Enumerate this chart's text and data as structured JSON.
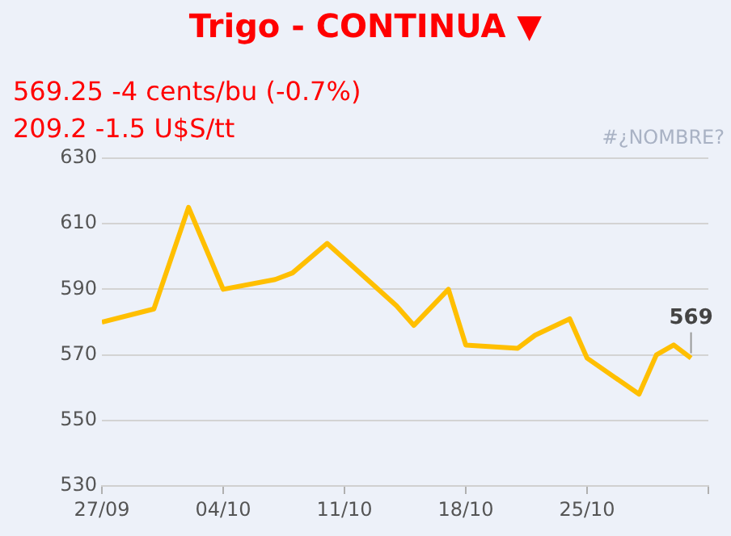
{
  "chart_data": {
    "type": "line",
    "title": "Trigo - CONTINUA ▼",
    "subtitle": "569.25 -4 cents/bu (-0.7%)",
    "annotations": [
      "209.2 -1.5 U$S/tt",
      "#¿NOMBRE?",
      {
        "text": "569",
        "x": "--10-31",
        "y": 569
      }
    ],
    "x": [
      "--09-27",
      "--09-30",
      "--10-02",
      "--10-04",
      "--10-07",
      "--10-08",
      "--10-10",
      "--10-14",
      "--10-15",
      "--10-17",
      "--10-18",
      "--10-21",
      "--10-22",
      "--10-24",
      "--10-25",
      "--10-28",
      "--10-29",
      "--10-30",
      "--10-31"
    ],
    "series": [
      {
        "color": "#ffbf00",
        "values": [
          580,
          584,
          615,
          590,
          593,
          595,
          604,
          585,
          579,
          590,
          573,
          572,
          576,
          581,
          569,
          558,
          570,
          573,
          569
        ]
      }
    ],
    "xlim": [
      "--09-27",
      "--11-01"
    ],
    "xticks": [
      {
        "value": "--09-27",
        "label": "27/09"
      },
      {
        "value": "--10-04",
        "label": "04/10"
      },
      {
        "value": "--10-11",
        "label": "11/10"
      },
      {
        "value": "--10-18",
        "label": "18/10"
      },
      {
        "value": "--10-25",
        "label": "25/10"
      },
      {
        "value": "--11-01",
        "label": null
      }
    ],
    "ylim": [
      530,
      630
    ],
    "yticks": [
      530,
      550,
      570,
      590,
      610,
      630
    ],
    "grid": "y",
    "legend": false,
    "marker": "none",
    "line_style": "solid"
  }
}
